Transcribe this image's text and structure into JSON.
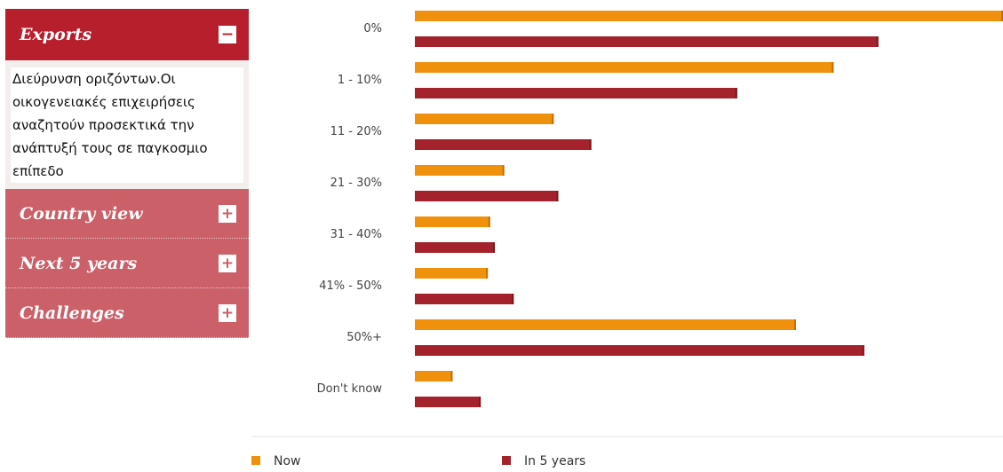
{
  "sidebar": {
    "active": {
      "title": "Exports",
      "toggle": "−",
      "content": "Διεύρυνση οριζόντων.Οι οικογενειακές επιχειρήσεις αναζητούν προσεκτικά την ανάπτυξή τους σε παγκοσμιο επίπεδο"
    },
    "items": [
      {
        "title": "Country view",
        "toggle": "+"
      },
      {
        "title": "Next 5 years",
        "toggle": "+"
      },
      {
        "title": "Challenges",
        "toggle": "+"
      }
    ]
  },
  "chart_data": {
    "type": "bar",
    "orientation": "horizontal",
    "categories": [
      "0%",
      "1 - 10%",
      "11 - 20%",
      "21 - 30%",
      "31 - 40%",
      "41% - 50%",
      "50%+",
      "Don't know"
    ],
    "series": [
      {
        "name": "Now",
        "color": "#f0910e",
        "values": [
          25.0,
          17.8,
          5.9,
          3.8,
          3.2,
          3.1,
          16.2,
          1.6
        ]
      },
      {
        "name": "In 5 years",
        "color": "#a3222b",
        "values": [
          19.7,
          13.7,
          7.5,
          6.1,
          3.4,
          4.2,
          19.1,
          2.8
        ]
      }
    ],
    "xlim": [
      0,
      25
    ],
    "grid": false,
    "legend_position": "bottom"
  }
}
